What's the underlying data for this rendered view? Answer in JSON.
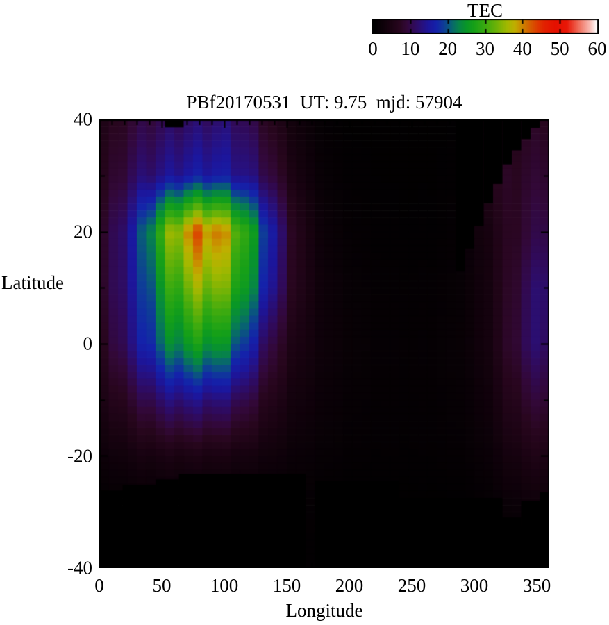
{
  "title": "PBf20170531  UT: 9.75  mjd: 57904",
  "colorbar": {
    "title": "TEC",
    "min": 0,
    "max": 60,
    "tick_labels": [
      "0",
      "10",
      "20",
      "30",
      "40",
      "50",
      "60"
    ],
    "colormap_stops": [
      [
        0,
        "#000000"
      ],
      [
        4,
        "#16020f"
      ],
      [
        7,
        "#28061e"
      ],
      [
        9,
        "#320838"
      ],
      [
        11,
        "#300a5a"
      ],
      [
        13,
        "#28107c"
      ],
      [
        15,
        "#1c169c"
      ],
      [
        17,
        "#1422aa"
      ],
      [
        19,
        "#0e3e96"
      ],
      [
        21,
        "#086470"
      ],
      [
        23,
        "#078448"
      ],
      [
        25,
        "#089627"
      ],
      [
        27,
        "#16a018"
      ],
      [
        30,
        "#3aaa10"
      ],
      [
        33,
        "#6cb207"
      ],
      [
        36,
        "#a4b800"
      ],
      [
        38,
        "#c0ae00"
      ],
      [
        40,
        "#cc8400"
      ],
      [
        42,
        "#d55f00"
      ],
      [
        44,
        "#dd3c00"
      ],
      [
        46,
        "#e22000"
      ],
      [
        49,
        "#e50f00"
      ],
      [
        52,
        "#e81808"
      ],
      [
        55,
        "#ef6a58"
      ],
      [
        58,
        "#f8b8b0"
      ],
      [
        60,
        "#ffffff"
      ]
    ]
  },
  "axes": {
    "xlabel": "Longitude",
    "ylabel": "Latitude",
    "xlim": [
      0,
      360
    ],
    "ylim": [
      -40,
      40
    ],
    "x_tick_labels": [
      "0",
      "50",
      "100",
      "150",
      "200",
      "250",
      "300",
      "350"
    ],
    "y_tick_labels": [
      "40",
      "20",
      "0",
      "-20",
      "-40"
    ]
  },
  "chart_data": {
    "type": "heatmap",
    "title": "PBf20170531  UT: 9.75  mjd: 57904",
    "xlabel": "Longitude",
    "ylabel": "Latitude",
    "value_label": "TEC",
    "value_range": [
      0,
      60
    ],
    "lons": [
      0,
      15,
      30,
      45,
      60,
      75,
      90,
      105,
      120,
      135,
      150,
      165,
      180,
      195,
      210,
      225,
      240,
      255,
      270,
      285,
      300,
      315,
      330,
      345,
      360
    ],
    "lats": [
      40,
      30,
      20,
      10,
      0,
      -10,
      -20,
      -30,
      -40
    ],
    "tec_grid": [
      [
        5,
        7,
        9,
        10,
        11,
        11.5,
        12,
        12,
        10,
        7,
        4,
        2,
        0.8,
        0.4,
        0.3,
        0.3,
        0.3,
        0.3,
        0.3,
        0.4,
        4.5,
        5.5,
        6.5,
        7,
        7.5
      ],
      [
        6,
        8.5,
        11.5,
        13,
        14.5,
        15.5,
        16,
        15,
        13,
        10,
        6,
        3,
        1.3,
        0.7,
        0.5,
        0.4,
        0.35,
        0.35,
        0.4,
        0.6,
        5,
        6.5,
        7.5,
        8,
        9
      ],
      [
        7,
        11,
        17,
        27,
        36,
        41,
        42,
        36,
        27,
        18,
        9,
        4.5,
        2,
        1.1,
        0.7,
        0.5,
        0.45,
        0.45,
        0.5,
        0.8,
        2.5,
        5,
        7.5,
        9,
        11
      ],
      [
        7,
        11,
        16,
        23,
        30,
        34,
        35,
        31,
        24,
        16,
        8.5,
        4.5,
        2.4,
        1.5,
        1,
        0.8,
        0.7,
        0.7,
        0.8,
        1.1,
        2.2,
        4.5,
        8,
        11,
        13.5
      ],
      [
        6,
        10,
        14.5,
        20,
        24,
        26,
        26,
        23,
        17,
        10.5,
        6,
        3.8,
        2.4,
        1.7,
        1.2,
        1,
        0.9,
        0.9,
        1,
        1.3,
        2.2,
        4.5,
        8.5,
        11.5,
        12.5
      ],
      [
        4.5,
        6.5,
        9,
        11.5,
        13,
        13.5,
        13,
        12,
        9.5,
        6.5,
        4.2,
        2.8,
        1.9,
        1.3,
        1,
        0.85,
        0.8,
        0.8,
        0.9,
        1.1,
        1.7,
        3.5,
        6.5,
        8.5,
        9.5
      ],
      [
        2.2,
        3,
        3.8,
        4.3,
        4.6,
        4.7,
        4.6,
        4.2,
        3.7,
        3,
        2.2,
        1.6,
        1.2,
        0.9,
        0.7,
        0.65,
        0.6,
        0.6,
        0.7,
        0.8,
        1.2,
        2.2,
        4,
        5,
        5.5
      ],
      [
        0.1,
        0.15,
        0.25,
        0.3,
        0.35,
        0.4,
        0.4,
        0.4,
        0.35,
        0.3,
        0.3,
        0.8,
        0.25,
        0.2,
        0.2,
        0.2,
        0.2,
        0.2,
        0.2,
        0.25,
        0.4,
        0.8,
        1.6,
        2,
        2.2
      ],
      [
        0.05,
        0.1,
        0.1,
        0.15,
        0.2,
        0.2,
        0.2,
        0.2,
        0.2,
        0.15,
        0.15,
        0.6,
        0.1,
        0.1,
        0.1,
        0.1,
        0.1,
        0.1,
        0.1,
        0.15,
        0.25,
        0.4,
        0.8,
        1,
        1.1
      ]
    ],
    "black_regions": [
      [
        0,
        -40,
        18.75,
        -26.2
      ],
      [
        18.75,
        -40,
        45,
        -25.2
      ],
      [
        45,
        -40,
        63.75,
        -24.2
      ],
      [
        63.75,
        -40,
        165,
        -23.2
      ],
      [
        172.5,
        -40,
        240,
        -24.5
      ],
      [
        240,
        -40,
        322.5,
        -27.5
      ],
      [
        322.5,
        -40,
        337.5,
        -31
      ],
      [
        337.5,
        -40,
        352.5,
        -28
      ],
      [
        352.5,
        -40,
        360,
        -26.5
      ],
      [
        52.5,
        38.6,
        67.5,
        40
      ],
      [
        285,
        13,
        292.5,
        40
      ],
      [
        292.5,
        17,
        300,
        40
      ],
      [
        300,
        21,
        307.5,
        40
      ],
      [
        307.5,
        25,
        315,
        40
      ],
      [
        315,
        28.5,
        322.5,
        40
      ],
      [
        322.5,
        32,
        330,
        40
      ],
      [
        330,
        34.5,
        337.5,
        40
      ],
      [
        337.5,
        36.5,
        345,
        40
      ],
      [
        345,
        38.5,
        352.5,
        40
      ]
    ]
  }
}
